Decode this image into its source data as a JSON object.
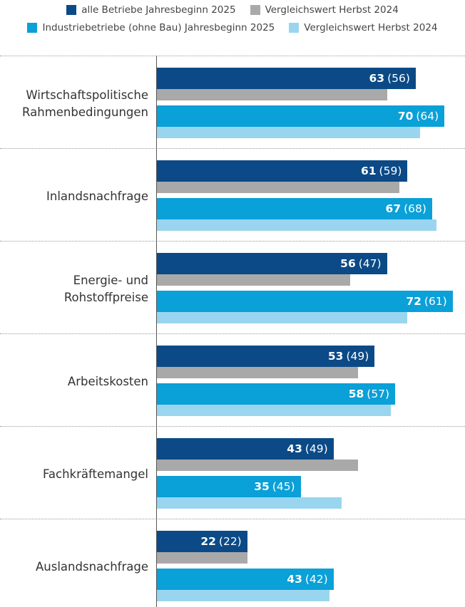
{
  "chart_data": {
    "type": "bar",
    "categories": [
      "Wirtschaftspolitische\nRahmenbedingungen",
      "Inlandsnachfrage",
      "Energie- und\nRohstoffpreise",
      "Arbeitskosten",
      "Fachkräftemangel",
      "Auslandsnachfrage"
    ],
    "series": [
      {
        "name": "alle Betriebe Jahresbeginn 2025",
        "color": "#0b4a86",
        "values": [
          63,
          61,
          56,
          53,
          43,
          22
        ]
      },
      {
        "name": "Vergleichswert Herbst 2024",
        "color": "#a9a9a9",
        "values": [
          56,
          59,
          47,
          49,
          49,
          22
        ],
        "value_labels": [
          "(56)",
          "(59)",
          "(47)",
          "(49)",
          "(49)",
          "(22)"
        ]
      },
      {
        "name": "Industriebetriebe (ohne Bau) Jahresbeginn 2025",
        "color": "#0aa0d8",
        "values": [
          70,
          67,
          72,
          58,
          35,
          43
        ]
      },
      {
        "name": "Vergleichswert Herbst 2024",
        "color": "#9ad5ef",
        "values": [
          64,
          68,
          61,
          57,
          45,
          42
        ],
        "value_labels": [
          "(64)",
          "(68)",
          "(61)",
          "(57)",
          "(45)",
          "(42)"
        ]
      }
    ],
    "xlim": [
      0,
      75
    ]
  }
}
